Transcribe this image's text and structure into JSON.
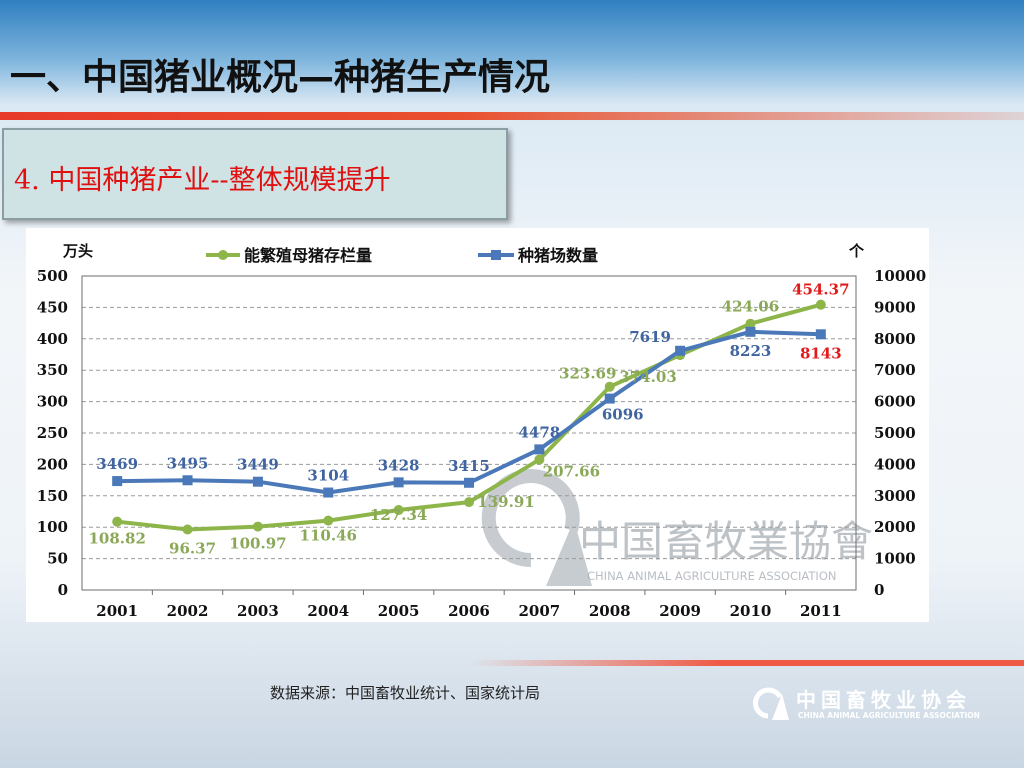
{
  "slide": {
    "title": "一、中国猪业概况—种猪生产情况",
    "subtitle": "4. 中国种猪产业--整体规模提升",
    "source_note": "数据来源：中国畜牧业统计、国家统计局"
  },
  "logo": {
    "name_cn": "中国畜牧业协会",
    "name_en": "CHINA ANIMAL AGRICULTURE ASSOCIATION"
  },
  "colors": {
    "sow_series": "#8db54a",
    "farm_series": "#4a78b8",
    "highlight_label": "#e01b1b",
    "title_red": "#e01010"
  },
  "chart_data": {
    "type": "line",
    "title": "",
    "categories": [
      "2001",
      "2002",
      "2003",
      "2004",
      "2005",
      "2006",
      "2007",
      "2008",
      "2009",
      "2010",
      "2011"
    ],
    "y_left": {
      "label": "万头",
      "range": [
        0,
        500
      ],
      "ticks": [
        0,
        50,
        100,
        150,
        200,
        250,
        300,
        350,
        400,
        450,
        500
      ]
    },
    "y_right": {
      "label": "个",
      "range": [
        0,
        10000
      ],
      "ticks": [
        0,
        1000,
        2000,
        3000,
        4000,
        5000,
        6000,
        7000,
        8000,
        9000,
        10000
      ]
    },
    "grid": "horizontal dashed",
    "legend_position": "top",
    "series": [
      {
        "name": "能繁殖母猪存栏量",
        "axis": "left",
        "color": "#8db54a",
        "marker": "circle",
        "values": [
          108.82,
          96.37,
          100.97,
          110.46,
          127.34,
          139.91,
          207.66,
          323.69,
          374.03,
          424.06,
          454.37
        ],
        "labels": [
          "108.82",
          "96.37",
          "100.97",
          "110.46",
          "127.34",
          "139.91",
          "207.66",
          "323.69",
          "374.03",
          "424.06",
          "454.37"
        ],
        "highlight_last": true
      },
      {
        "name": "种猪场数量",
        "axis": "right",
        "color": "#4a78b8",
        "marker": "square",
        "values": [
          3469,
          3495,
          3449,
          3104,
          3428,
          3415,
          4478,
          6096,
          7619,
          8223,
          8143
        ],
        "labels": [
          "3469",
          "3495",
          "3449",
          "3104",
          "3428",
          "3415",
          "4478",
          "6096",
          "7619",
          "8223",
          "8143"
        ],
        "highlight_last": true
      }
    ],
    "watermark": {
      "text_cn": "中国畜牧業協會",
      "text_en": "CHINA ANIMAL AGRICULTURE ASSOCIATION"
    }
  }
}
